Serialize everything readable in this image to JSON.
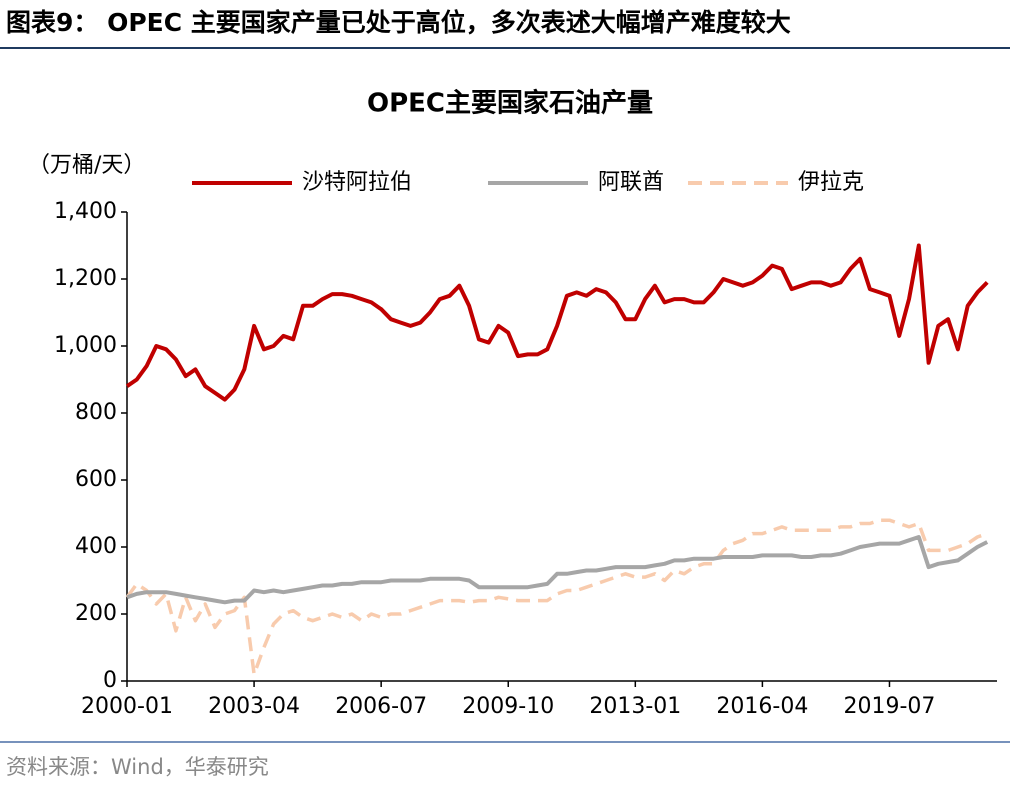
{
  "header": "图表9：  OPEC 主要国家产量已处于高位，多次表述大幅增产难度较大",
  "source": "资料来源：Wind，华泰研究",
  "chart_data": {
    "type": "line",
    "title": "OPEC主要国家石油产量",
    "y_unit": "（万桶/天）",
    "x": [
      "2000-01",
      "2000-04",
      "2000-07",
      "2000-10",
      "2001-01",
      "2001-04",
      "2001-07",
      "2001-10",
      "2002-01",
      "2002-04",
      "2002-07",
      "2002-10",
      "2003-01",
      "2003-04",
      "2003-07",
      "2003-10",
      "2004-01",
      "2004-04",
      "2004-07",
      "2004-10",
      "2005-01",
      "2005-04",
      "2005-07",
      "2005-10",
      "2006-01",
      "2006-04",
      "2006-07",
      "2006-10",
      "2007-01",
      "2007-04",
      "2007-07",
      "2007-10",
      "2008-01",
      "2008-04",
      "2008-07",
      "2008-10",
      "2009-01",
      "2009-04",
      "2009-07",
      "2009-10",
      "2010-01",
      "2010-04",
      "2010-07",
      "2010-10",
      "2011-01",
      "2011-04",
      "2011-07",
      "2011-10",
      "2012-01",
      "2012-04",
      "2012-07",
      "2012-10",
      "2013-01",
      "2013-04",
      "2013-07",
      "2013-10",
      "2014-01",
      "2014-04",
      "2014-07",
      "2014-10",
      "2015-01",
      "2015-04",
      "2015-07",
      "2015-10",
      "2016-01",
      "2016-04",
      "2016-07",
      "2016-10",
      "2017-01",
      "2017-04",
      "2017-07",
      "2017-10",
      "2018-01",
      "2018-04",
      "2018-07",
      "2018-10",
      "2019-01",
      "2019-04",
      "2019-07",
      "2019-10",
      "2020-01",
      "2020-04",
      "2020-07",
      "2020-10",
      "2021-01",
      "2021-04",
      "2021-07",
      "2021-10",
      "2022-01"
    ],
    "series": [
      {
        "name": "沙特阿拉伯",
        "color": "#c00000",
        "dash": false,
        "values": [
          880,
          900,
          940,
          1000,
          990,
          960,
          910,
          930,
          880,
          860,
          840,
          870,
          930,
          1060,
          990,
          1000,
          1030,
          1020,
          1120,
          1120,
          1140,
          1155,
          1155,
          1150,
          1140,
          1130,
          1110,
          1080,
          1070,
          1060,
          1070,
          1100,
          1140,
          1150,
          1180,
          1120,
          1020,
          1010,
          1060,
          1040,
          970,
          975,
          975,
          990,
          1060,
          1150,
          1160,
          1150,
          1170,
          1160,
          1130,
          1080,
          1080,
          1140,
          1180,
          1130,
          1140,
          1140,
          1130,
          1130,
          1160,
          1200,
          1190,
          1180,
          1190,
          1210,
          1240,
          1230,
          1170,
          1180,
          1190,
          1190,
          1180,
          1190,
          1230,
          1260,
          1170,
          1160,
          1150,
          1030,
          1140,
          1300,
          950,
          1060,
          1080,
          990,
          1120,
          1160,
          1190
        ]
      },
      {
        "name": "阿联酋",
        "color": "#a6a6a6",
        "dash": false,
        "values": [
          250,
          260,
          265,
          265,
          265,
          260,
          255,
          250,
          245,
          240,
          235,
          240,
          240,
          270,
          265,
          270,
          265,
          270,
          275,
          280,
          285,
          285,
          290,
          290,
          295,
          295,
          295,
          300,
          300,
          300,
          300,
          305,
          305,
          305,
          305,
          300,
          280,
          280,
          280,
          280,
          280,
          280,
          285,
          290,
          320,
          320,
          325,
          330,
          330,
          335,
          340,
          340,
          340,
          340,
          345,
          350,
          360,
          360,
          365,
          365,
          365,
          370,
          370,
          370,
          370,
          375,
          375,
          375,
          375,
          370,
          370,
          375,
          375,
          380,
          390,
          400,
          405,
          410,
          410,
          410,
          420,
          430,
          340,
          350,
          355,
          360,
          380,
          400,
          415
        ]
      },
      {
        "name": "伊拉克",
        "color": "#f8cbad",
        "dash": true,
        "values": [
          250,
          290,
          270,
          230,
          260,
          150,
          250,
          180,
          230,
          160,
          200,
          210,
          250,
          20,
          100,
          170,
          200,
          210,
          190,
          180,
          190,
          200,
          190,
          200,
          180,
          200,
          190,
          200,
          200,
          210,
          220,
          230,
          240,
          240,
          240,
          235,
          240,
          240,
          250,
          245,
          240,
          240,
          240,
          240,
          260,
          270,
          270,
          280,
          290,
          300,
          310,
          320,
          310,
          310,
          320,
          300,
          330,
          320,
          340,
          350,
          350,
          390,
          410,
          420,
          440,
          440,
          450,
          460,
          450,
          450,
          450,
          450,
          450,
          460,
          460,
          470,
          470,
          480,
          480,
          470,
          460,
          470,
          390,
          390,
          390,
          400,
          410,
          430,
          440
        ]
      }
    ],
    "xlim": [
      "2000-01",
      "2022-04"
    ],
    "xticks": [
      "2000-01",
      "2003-04",
      "2006-07",
      "2009-10",
      "2013-01",
      "2016-04",
      "2019-07"
    ],
    "ylim": [
      0,
      1400
    ],
    "yticks": [
      0,
      200,
      400,
      600,
      800,
      {
        "value": 1000,
        "label": "1,000"
      },
      {
        "value": 1200,
        "label": "1,200"
      },
      {
        "value": 1400,
        "label": "1,400"
      }
    ],
    "grid": false,
    "legend": "top"
  }
}
